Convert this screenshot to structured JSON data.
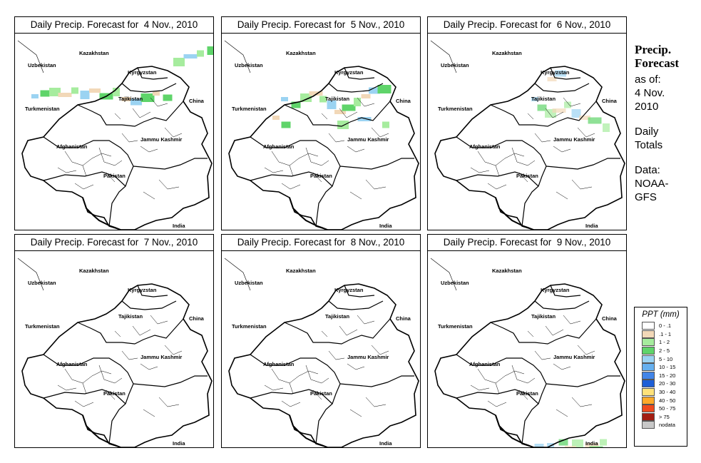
{
  "panels": [
    {
      "title": "Daily Precip. Forecast for  4 Nov., 2010",
      "date": "4 Nov."
    },
    {
      "title": "Daily Precip. Forecast for  5 Nov., 2010",
      "date": "5 Nov."
    },
    {
      "title": "Daily Precip. Forecast for  6 Nov., 2010",
      "date": "6 Nov."
    },
    {
      "title": "Daily Precip. Forecast for  7 Nov., 2010",
      "date": "7 Nov."
    },
    {
      "title": "Daily Precip. Forecast for  8 Nov., 2010",
      "date": "8 Nov."
    },
    {
      "title": "Daily Precip. Forecast for  9 Nov., 2010",
      "date": "9 Nov."
    }
  ],
  "map_labels": {
    "kazakhstan": "Kazakhstan",
    "uzbekistan": "Uzbekistan",
    "kyrgyzstan": "Kyrgyzstan",
    "tajikistan": "Tajikistan",
    "turkmenistan": "Turkmenistan",
    "china": "China",
    "afghanistan": "Afghanistan",
    "jammu_kashmir": "Jammu Kashmir",
    "pakistan": "Pakistan",
    "india": "India"
  },
  "sidebar": {
    "title_line1": "Precip.",
    "title_line2": "Forecast",
    "asof_line1": "as of:",
    "asof_line2": "4 Nov.",
    "asof_line3": "2010",
    "totals_line1": "Daily",
    "totals_line2": "Totals",
    "data_line1": "Data:",
    "data_line2": "NOAA-",
    "data_line3": "GFS"
  },
  "legend": {
    "title": "PPT (mm)",
    "items": [
      {
        "label": "0 - .1",
        "color": "#ffffff"
      },
      {
        "label": ".1 - 1",
        "color": "#f2d8b8"
      },
      {
        "label": "1 - 2",
        "color": "#a6ec9e"
      },
      {
        "label": "2 - 5",
        "color": "#5fd46a"
      },
      {
        "label": "5 - 10",
        "color": "#9bd3f2"
      },
      {
        "label": "10 - 15",
        "color": "#66b0ef"
      },
      {
        "label": "15 - 20",
        "color": "#4285e8"
      },
      {
        "label": "20 - 30",
        "color": "#1f5fd6"
      },
      {
        "label": "30 - 40",
        "color": "#ffe27a"
      },
      {
        "label": "40 - 50",
        "color": "#ffaa2a"
      },
      {
        "label": "50 - 75",
        "color": "#ef4a1e"
      },
      {
        "label": "> 75",
        "color": "#a31d12"
      },
      {
        "label": "nodata",
        "color": "#c8c8c8"
      }
    ]
  },
  "precip_levels": {
    "p0": 0.6,
    "p1": 0.8,
    "p2": 0.3,
    "p3": 0.05,
    "p4": 0.02,
    "p5": 0.35
  }
}
